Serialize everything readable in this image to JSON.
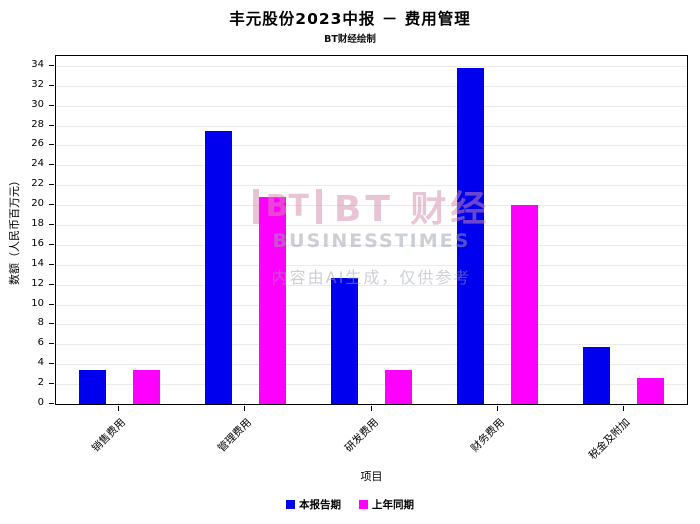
{
  "chart_data": {
    "type": "bar",
    "title": "丰元股份2023中报 － 费用管理",
    "subtitle": "BT财经绘制",
    "categories": [
      "销售费用",
      "管理费用",
      "研发费用",
      "财务费用",
      "税金及附加"
    ],
    "series": [
      {
        "name": "本报告期",
        "color": "#0000ee",
        "values": [
          3.4,
          27.5,
          12.7,
          33.8,
          5.7
        ]
      },
      {
        "name": "上年同期",
        "color": "#ff00ff",
        "values": [
          3.4,
          20.8,
          3.4,
          20.0,
          2.6
        ]
      }
    ],
    "xlabel": "项目",
    "ylabel": "数额（人民币百万元）",
    "ylim": [
      0,
      35
    ],
    "ytick_step": 2,
    "grid": true,
    "legend_position": "bottom"
  },
  "watermark": {
    "logo": "BT",
    "brand": "BT 财经",
    "brand_sub": "BUSINESSTIMES",
    "note": "内容由AI生成，仅供参考",
    "brand_color": "#d38bab",
    "gray_color": "#9aa0a8"
  }
}
